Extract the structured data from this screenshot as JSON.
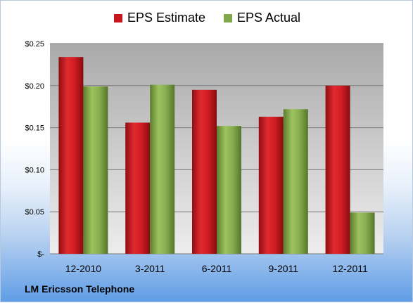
{
  "chart_data": {
    "type": "bar",
    "categories": [
      "12-2010",
      "3-2011",
      "6-2011",
      "9-2011",
      "12-2011"
    ],
    "series": [
      {
        "name": "EPS Estimate",
        "values": [
          0.234,
          0.156,
          0.195,
          0.163,
          0.2
        ],
        "color": "#c8161d"
      },
      {
        "name": "EPS Actual",
        "values": [
          0.199,
          0.201,
          0.152,
          0.172,
          0.049
        ],
        "color": "#80a84a"
      }
    ],
    "ylim": [
      0,
      0.25
    ],
    "yticks": [
      0.25,
      0.2,
      0.15,
      0.1,
      0.05,
      0
    ],
    "ytick_labels": [
      "$0.25",
      "$0.20",
      "$0.15",
      "$0.10",
      "$0.05",
      "$-"
    ],
    "grid": true,
    "legend_position": "top",
    "title": "",
    "xlabel": "",
    "ylabel": ""
  },
  "footer": {
    "company": "LM Ericsson Telephone"
  }
}
